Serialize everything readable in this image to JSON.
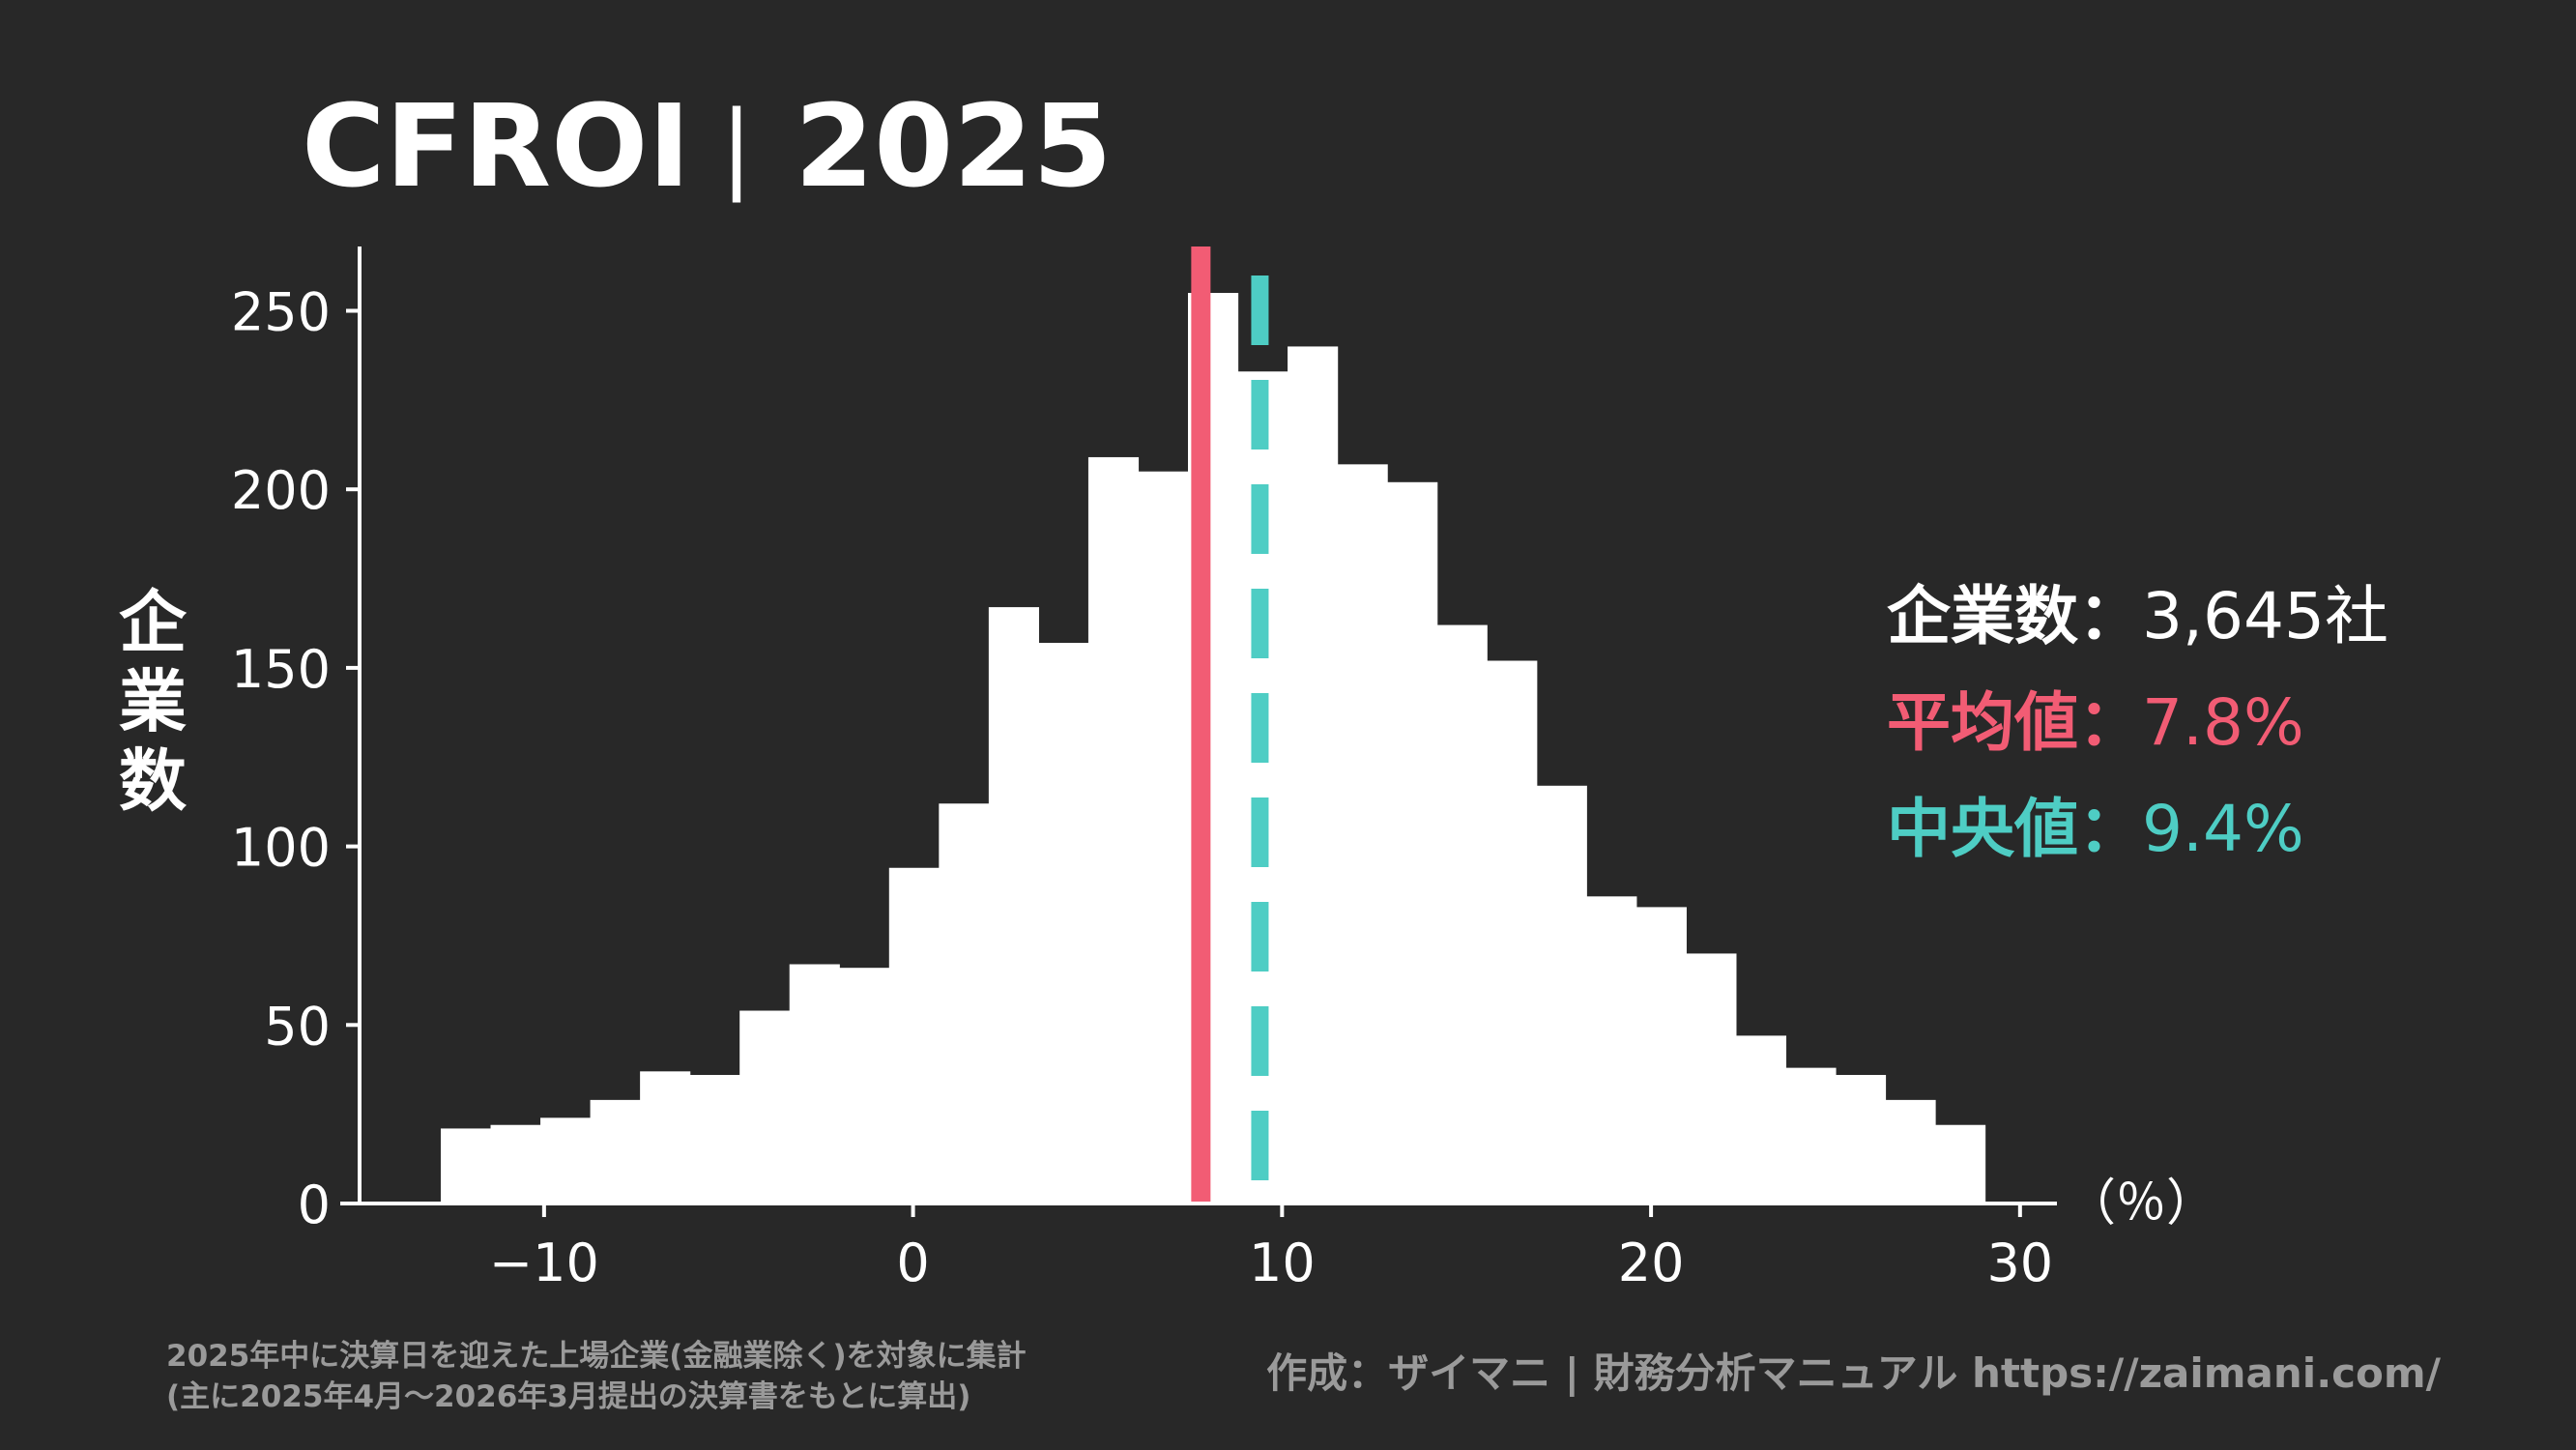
{
  "header": {
    "title": "CFROI",
    "separator": "|",
    "year": "2025"
  },
  "stats": {
    "count_label": "企業数",
    "count_value": "3,645社",
    "mean_label": "平均値",
    "mean_value": "7.8%",
    "median_label": "中央値",
    "median_value": "9.4%",
    "colon": "："
  },
  "footer": {
    "note_line1": "2025年中に決算日を迎えた上場企業(金融業除く)を対象に集計",
    "note_line2": "(主に2025年4月～2026年3月提出の決算書をもとに算出)",
    "credit": "作成：ザイマニ | 財務分析マニュアル https://zaimani.com/"
  },
  "colors": {
    "background": "#282828",
    "bars": "#ffffff",
    "mean": "#f25c74",
    "median": "#4ecdc4",
    "text": "#ffffff",
    "footer_text": "#9a9a9a"
  },
  "chart_data": {
    "type": "bar",
    "subtype": "histogram",
    "xlabel": "（％）",
    "ylabel": "企業数",
    "xlim": [
      -15,
      31
    ],
    "ylim": [
      0,
      268
    ],
    "xticks": [
      -10,
      0,
      10,
      20,
      30
    ],
    "xtick_labels": [
      "−10",
      "0",
      "10",
      "20",
      "30"
    ],
    "yticks": [
      0,
      50,
      100,
      150,
      200,
      250
    ],
    "yticks_labels": [
      "0",
      "50",
      "100",
      "150",
      "200",
      "250"
    ],
    "bin_edges": [
      -12.8,
      -11.45,
      -10.1,
      -8.75,
      -7.4,
      -6.05,
      -4.7,
      -3.35,
      -2.0,
      -0.65,
      0.7,
      2.05,
      3.4,
      4.75,
      6.1,
      7.45,
      8.8,
      10.15,
      11.5,
      12.85,
      14.2,
      15.55,
      16.9,
      18.25,
      19.6,
      20.95,
      22.3,
      23.65,
      25.0,
      26.35,
      27.7,
      29.05
    ],
    "values": [
      21,
      22,
      24,
      29,
      37,
      36,
      54,
      67,
      66,
      94,
      112,
      167,
      157,
      209,
      205,
      255,
      233,
      240,
      207,
      202,
      162,
      152,
      117,
      86,
      83,
      70,
      47,
      38,
      36,
      29,
      22
    ],
    "mean": 7.8,
    "median": 9.4,
    "grid": false
  }
}
